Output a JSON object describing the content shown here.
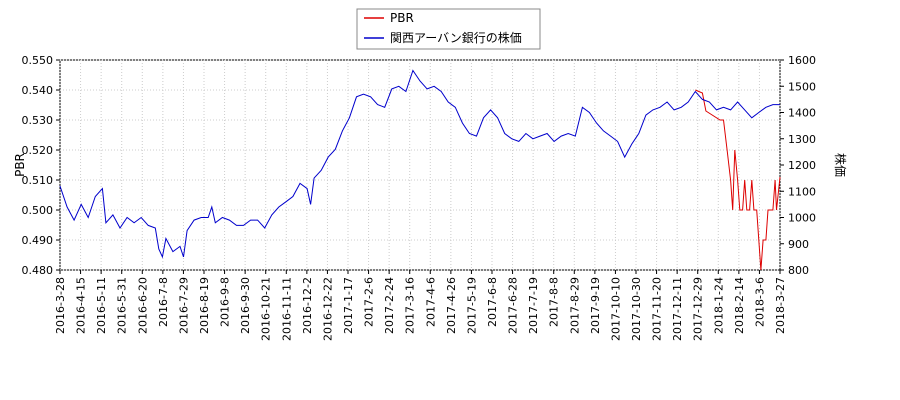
{
  "chart_data": {
    "type": "line",
    "x_tick_labels": [
      "2016-3-28",
      "2016-4-15",
      "2016-5-11",
      "2016-5-31",
      "2016-6-20",
      "2016-7-8",
      "2016-7-29",
      "2016-8-19",
      "2016-9-8",
      "2016-9-30",
      "2016-10-21",
      "2016-11-11",
      "2016-12-2",
      "2016-12-22",
      "2017-1-17",
      "2017-2-6",
      "2017-2-24",
      "2017-3-16",
      "2017-4-6",
      "2017-4-26",
      "2017-5-19",
      "2017-6-8",
      "2017-6-28",
      "2017-7-19",
      "2017-8-8",
      "2017-8-29",
      "2017-9-19",
      "2017-10-10",
      "2017-10-30",
      "2017-11-20",
      "2017-12-11",
      "2017-12-29",
      "2018-1-24",
      "2018-2-14",
      "2018-3-6",
      "2018-3-27"
    ],
    "ylabel_left": "PBR",
    "ylabel_right": "株価",
    "ylim_left": [
      0.48,
      0.55
    ],
    "ylim_right": [
      800,
      1600
    ],
    "left_ticks": [
      "0.480",
      "0.490",
      "0.500",
      "0.510",
      "0.520",
      "0.530",
      "0.540",
      "0.550"
    ],
    "right_ticks": [
      "800",
      "900",
      "1000",
      "1100",
      "1200",
      "1300",
      "1400",
      "1500",
      "1600"
    ],
    "legend_position": "top-center",
    "grid": true,
    "series": [
      {
        "name": "PBR",
        "color": "#dd0000",
        "axis": "left",
        "points": [
          [
            0.9,
            0.54
          ],
          [
            0.91,
            0.539
          ],
          [
            0.915,
            0.533
          ],
          [
            0.935,
            0.53
          ],
          [
            0.94,
            0.53
          ],
          [
            0.945,
            0.52
          ],
          [
            0.95,
            0.51
          ],
          [
            0.953,
            0.5
          ],
          [
            0.956,
            0.52
          ],
          [
            0.96,
            0.51
          ],
          [
            0.963,
            0.5
          ],
          [
            0.967,
            0.5
          ],
          [
            0.97,
            0.51
          ],
          [
            0.973,
            0.5
          ],
          [
            0.977,
            0.5
          ],
          [
            0.98,
            0.51
          ],
          [
            0.983,
            0.5
          ],
          [
            0.987,
            0.5
          ],
          [
            0.99,
            0.49
          ],
          [
            0.993,
            0.48
          ],
          [
            0.996,
            0.49
          ],
          [
            1.0,
            0.49
          ],
          [
            1.003,
            0.5
          ],
          [
            1.01,
            0.5
          ],
          [
            1.013,
            0.51
          ],
          [
            1.015,
            0.5
          ],
          [
            1.02,
            0.511
          ]
        ]
      },
      {
        "name": "関西アーバン銀行の株価",
        "color": "#0000cc",
        "axis": "right",
        "points": [
          [
            0.0,
            1120
          ],
          [
            0.01,
            1040
          ],
          [
            0.02,
            990
          ],
          [
            0.03,
            1050
          ],
          [
            0.04,
            1000
          ],
          [
            0.05,
            1080
          ],
          [
            0.06,
            1110
          ],
          [
            0.065,
            980
          ],
          [
            0.075,
            1010
          ],
          [
            0.085,
            960
          ],
          [
            0.095,
            1000
          ],
          [
            0.105,
            980
          ],
          [
            0.115,
            1000
          ],
          [
            0.125,
            970
          ],
          [
            0.135,
            960
          ],
          [
            0.14,
            880
          ],
          [
            0.145,
            850
          ],
          [
            0.15,
            920
          ],
          [
            0.16,
            870
          ],
          [
            0.17,
            890
          ],
          [
            0.175,
            850
          ],
          [
            0.18,
            950
          ],
          [
            0.19,
            990
          ],
          [
            0.2,
            1000
          ],
          [
            0.21,
            1000
          ],
          [
            0.215,
            1040
          ],
          [
            0.22,
            980
          ],
          [
            0.23,
            1000
          ],
          [
            0.24,
            990
          ],
          [
            0.25,
            970
          ],
          [
            0.26,
            970
          ],
          [
            0.27,
            990
          ],
          [
            0.28,
            990
          ],
          [
            0.29,
            960
          ],
          [
            0.3,
            1010
          ],
          [
            0.31,
            1040
          ],
          [
            0.32,
            1060
          ],
          [
            0.33,
            1080
          ],
          [
            0.34,
            1130
          ],
          [
            0.35,
            1110
          ],
          [
            0.355,
            1050
          ],
          [
            0.36,
            1150
          ],
          [
            0.37,
            1180
          ],
          [
            0.38,
            1230
          ],
          [
            0.39,
            1260
          ],
          [
            0.4,
            1330
          ],
          [
            0.41,
            1380
          ],
          [
            0.42,
            1460
          ],
          [
            0.43,
            1470
          ],
          [
            0.44,
            1460
          ],
          [
            0.45,
            1430
          ],
          [
            0.46,
            1420
          ],
          [
            0.47,
            1490
          ],
          [
            0.48,
            1500
          ],
          [
            0.49,
            1480
          ],
          [
            0.5,
            1560
          ],
          [
            0.51,
            1520
          ],
          [
            0.52,
            1490
          ],
          [
            0.53,
            1500
          ],
          [
            0.54,
            1480
          ],
          [
            0.55,
            1440
          ],
          [
            0.56,
            1420
          ],
          [
            0.57,
            1360
          ],
          [
            0.58,
            1320
          ],
          [
            0.59,
            1310
          ],
          [
            0.6,
            1380
          ],
          [
            0.61,
            1410
          ],
          [
            0.62,
            1380
          ],
          [
            0.63,
            1320
          ],
          [
            0.64,
            1300
          ],
          [
            0.65,
            1290
          ],
          [
            0.66,
            1320
          ],
          [
            0.67,
            1300
          ],
          [
            0.68,
            1310
          ],
          [
            0.69,
            1320
          ],
          [
            0.7,
            1290
          ],
          [
            0.71,
            1310
          ],
          [
            0.72,
            1320
          ],
          [
            0.73,
            1310
          ],
          [
            0.74,
            1420
          ],
          [
            0.75,
            1400
          ],
          [
            0.76,
            1360
          ],
          [
            0.77,
            1330
          ],
          [
            0.78,
            1310
          ],
          [
            0.79,
            1290
          ],
          [
            0.8,
            1230
          ],
          [
            0.81,
            1280
          ],
          [
            0.82,
            1320
          ],
          [
            0.83,
            1390
          ],
          [
            0.84,
            1410
          ],
          [
            0.85,
            1420
          ],
          [
            0.86,
            1440
          ],
          [
            0.87,
            1410
          ],
          [
            0.88,
            1420
          ],
          [
            0.89,
            1440
          ],
          [
            0.9,
            1480
          ],
          [
            0.91,
            1450
          ],
          [
            0.92,
            1440
          ],
          [
            0.93,
            1410
          ],
          [
            0.94,
            1420
          ],
          [
            0.95,
            1410
          ],
          [
            0.96,
            1440
          ],
          [
            0.97,
            1410
          ],
          [
            0.98,
            1380
          ],
          [
            0.99,
            1400
          ],
          [
            1.0,
            1420
          ],
          [
            1.01,
            1430
          ],
          [
            1.02,
            1430
          ]
        ]
      }
    ]
  }
}
